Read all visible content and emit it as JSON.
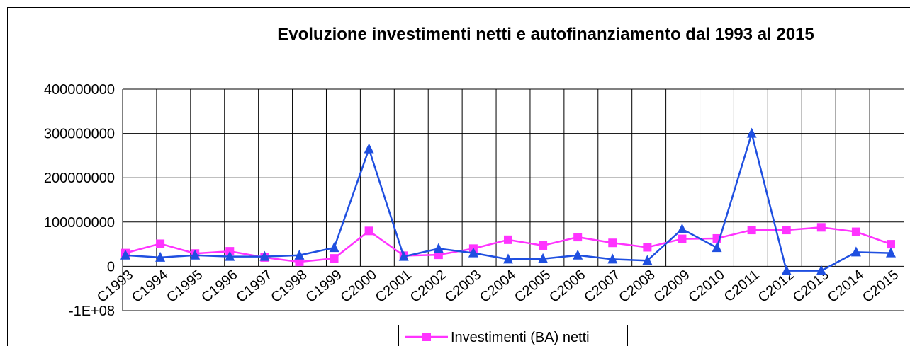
{
  "chart_data": {
    "type": "line",
    "title": "Evoluzione investimenti netti e autofinanziamento dal 1993 al 2015",
    "categories": [
      "C1993",
      "C1994",
      "C1995",
      "C1996",
      "C1997",
      "C1998",
      "C1999",
      "C2000",
      "C2001",
      "C2002",
      "C2003",
      "C2004",
      "C2005",
      "C2006",
      "C2007",
      "C2008",
      "C2009",
      "C2010",
      "C2011",
      "C2012",
      "C2013",
      "C2014",
      "C2015"
    ],
    "series": [
      {
        "name": "Investimenti (BA) netti",
        "color": "#ff33ff",
        "marker": "square",
        "values": [
          30000000,
          51000000,
          29000000,
          34000000,
          20000000,
          10000000,
          18000000,
          80000000,
          24000000,
          26000000,
          40000000,
          60000000,
          47000000,
          66000000,
          53000000,
          43000000,
          62000000,
          63000000,
          82000000,
          82000000,
          88000000,
          78000000,
          50000000
        ]
      },
      {
        "color": "#1f4fe0",
        "marker": "triangle",
        "values": [
          25000000,
          20000000,
          25000000,
          22000000,
          22000000,
          25000000,
          42000000,
          265000000,
          22000000,
          40000000,
          30000000,
          16000000,
          17000000,
          25000000,
          16000000,
          13000000,
          84000000,
          42000000,
          300000000,
          -10000000,
          -10000000,
          32000000,
          30000000
        ]
      }
    ],
    "ylim": [
      -100000000,
      400000000
    ],
    "yticks": [
      {
        "value": -100000000,
        "label": "-1E+08"
      },
      0,
      100000000,
      200000000,
      300000000,
      400000000
    ],
    "grid": true,
    "legend": "bottom"
  }
}
